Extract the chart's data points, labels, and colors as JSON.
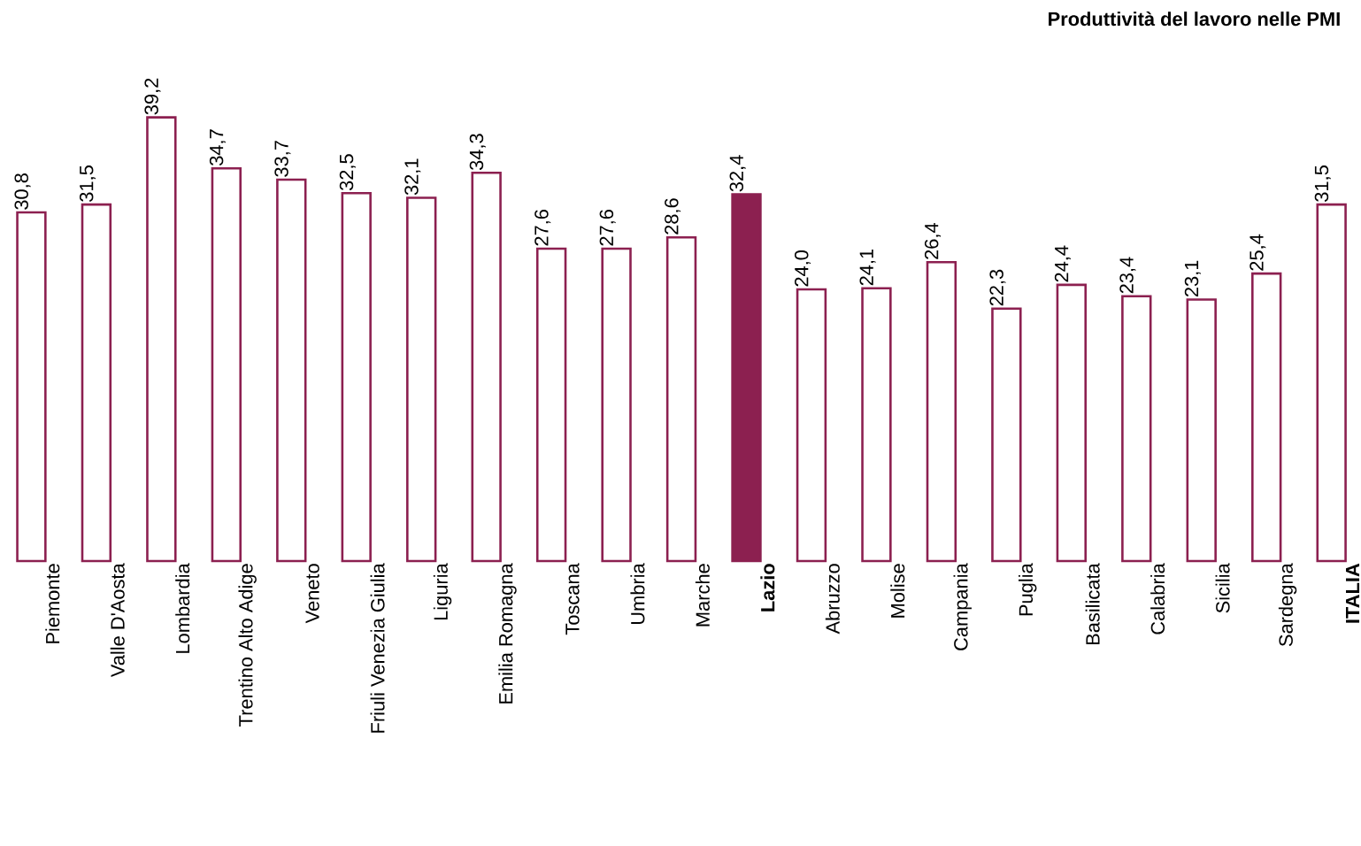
{
  "chart_data": {
    "type": "bar",
    "title": "Produttività del lavoro nelle PMI",
    "categories": [
      "Piemonte",
      "Valle D'Aosta",
      "Lombardia",
      "Trentino Alto Adige",
      "Veneto",
      "Friuli Venezia Giulia",
      "Liguria",
      "Emilia Romagna",
      "Toscana",
      "Umbria",
      "Marche",
      "**Lazio**",
      "Abruzzo",
      "Molise",
      "Campania",
      "Puglia",
      "Basilicata",
      "Calabria",
      "Sicilia",
      "Sardegna",
      "**ITALIA**"
    ],
    "values": [
      30.8,
      31.5,
      39.2,
      34.7,
      33.7,
      32.5,
      32.1,
      34.3,
      27.6,
      27.6,
      28.6,
      32.4,
      24.0,
      24.1,
      26.4,
      22.3,
      24.4,
      23.4,
      23.1,
      25.4,
      31.5
    ],
    "value_labels": [
      "30,8",
      "31,5",
      "39,2",
      "34,7",
      "33,7",
      "32,5",
      "32,1",
      "34,3",
      "27,6",
      "27,6",
      "28,6",
      "32,4",
      "24,0",
      "24,1",
      "26,4",
      "22,3",
      "24,4",
      "23,4",
      "23,1",
      "25,4",
      "31,5"
    ],
    "color": "#8c2050",
    "colors": [
      "#ffffff",
      "#ffffff",
      "#ffffff",
      "#ffffff",
      "#ffffff",
      "#ffffff",
      "#ffffff",
      "#ffffff",
      "#ffffff",
      "#ffffff",
      "#ffffff",
      "#8c2050",
      "#ffffff",
      "#ffffff",
      "#ffffff",
      "#ffffff",
      "#ffffff",
      "#ffffff",
      "#ffffff",
      "#ffffff",
      "#ffffff"
    ]
  }
}
